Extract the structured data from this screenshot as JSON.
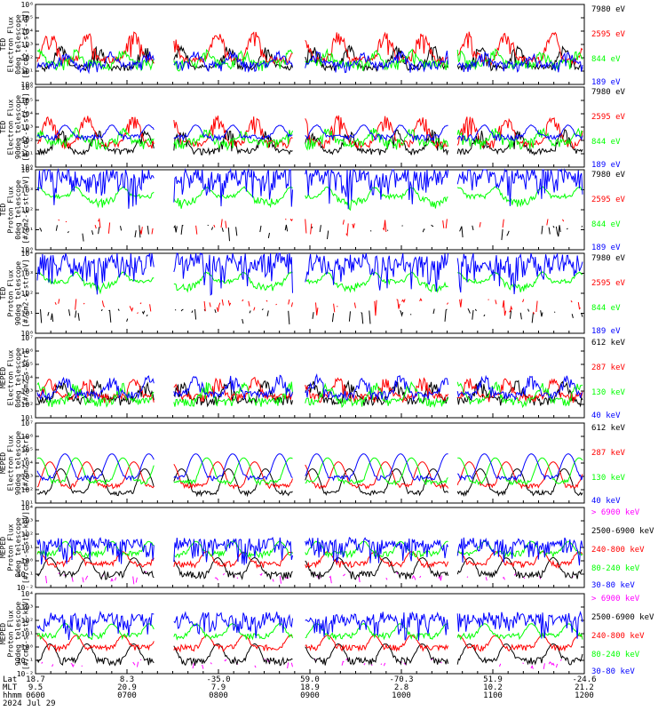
{
  "colors": {
    "black": "#000000",
    "red": "#ff0000",
    "green": "#00ff00",
    "blue": "#0000ff",
    "magenta": "#ff00ff"
  },
  "chart_data": [
    {
      "type": "line",
      "ylabel": [
        "TED",
        "Electron Flux",
        "0deg telescope",
        "[#/cm2-s-str-eV]"
      ],
      "yscale": "log",
      "ylim_exp": [
        0,
        6
      ],
      "tick_labels": [
        "10⁰",
        "10¹",
        "10²",
        "10³",
        "10⁴",
        "10⁵",
        "10⁶"
      ],
      "series": [
        {
          "name": "7980 eV",
          "color": "black",
          "base": 10,
          "pat": "lowpeaks",
          "seed": 1
        },
        {
          "name": "2595 eV",
          "color": "red",
          "base": 30,
          "pat": "peaks",
          "seed": 2
        },
        {
          "name": "844 eV",
          "color": "green",
          "base": 20,
          "pat": "flat",
          "seed": 3
        },
        {
          "name": "189 eV",
          "color": "blue",
          "base": 15,
          "pat": "flat",
          "seed": 4
        }
      ]
    },
    {
      "type": "line",
      "ylabel": [
        "TED",
        "Electron Flux",
        "90deg telescope",
        "[#/cm2-s-str-eV]"
      ],
      "yscale": "log",
      "ylim_exp": [
        0,
        6
      ],
      "tick_labels": [
        "10⁰",
        "10¹",
        "10²",
        "10³",
        "10⁴",
        "10⁵",
        "10⁶"
      ],
      "series": [
        {
          "name": "7980 eV",
          "color": "black",
          "base": 8,
          "pat": "lowpeaks",
          "seed": 5
        },
        {
          "name": "2595 eV",
          "color": "red",
          "base": 25,
          "pat": "peaks",
          "seed": 6
        },
        {
          "name": "844 eV",
          "color": "green",
          "base": 40,
          "pat": "flat",
          "seed": 7
        },
        {
          "name": "189 eV",
          "color": "blue",
          "base": 150,
          "pat": "band",
          "seed": 8
        }
      ]
    },
    {
      "type": "line",
      "ylabel": [
        "TED",
        "Proton Flux",
        "0deg telescope",
        "[#/cm2-s-str-eV]"
      ],
      "yscale": "log",
      "ylim_exp": [
        0,
        4
      ],
      "tick_labels": [
        "10⁰",
        "10¹",
        "10²",
        "10³",
        "10⁴"
      ],
      "series": [
        {
          "name": "7980 eV",
          "color": "black",
          "base": 5,
          "pat": "sparse",
          "seed": 9
        },
        {
          "name": "2595 eV",
          "color": "red",
          "base": 10,
          "pat": "sparse",
          "seed": 10
        },
        {
          "name": "844 eV",
          "color": "green",
          "base": 300,
          "pat": "arc",
          "seed": 11
        },
        {
          "name": "189 eV",
          "color": "blue",
          "base": 500,
          "pat": "spiky",
          "seed": 12
        }
      ]
    },
    {
      "type": "line",
      "ylabel": [
        "TED",
        "Proton Flux",
        "90deg telescope",
        "[#/cm2-s-str-eV]"
      ],
      "yscale": "log",
      "ylim_exp": [
        0,
        4
      ],
      "tick_labels": [
        "10⁰",
        "10¹",
        "10²",
        "10³",
        "10⁴"
      ],
      "series": [
        {
          "name": "7980 eV",
          "color": "black",
          "base": 5,
          "pat": "sparse",
          "seed": 13
        },
        {
          "name": "2595 eV",
          "color": "red",
          "base": 15,
          "pat": "sparse",
          "seed": 14
        },
        {
          "name": "844 eV",
          "color": "green",
          "base": 250,
          "pat": "arc",
          "seed": 15
        },
        {
          "name": "189 eV",
          "color": "blue",
          "base": 400,
          "pat": "spiky",
          "seed": 16
        }
      ]
    },
    {
      "type": "line",
      "ylabel": [
        "MEPED",
        "Electron Flux",
        "0deg telescope",
        "[#/cm2-s-str]"
      ],
      "yscale": "log",
      "ylim_exp": [
        1,
        7
      ],
      "tick_labels": [
        "10¹",
        "10²",
        "10³",
        "10⁴",
        "10⁵",
        "10⁶",
        "10⁷"
      ],
      "series": [
        {
          "name": "612 keV",
          "color": "black",
          "base": 150,
          "pat": "noisy",
          "seed": 17
        },
        {
          "name": "287 keV",
          "color": "red",
          "base": 250,
          "pat": "noisy",
          "seed": 18
        },
        {
          "name": "130 keV",
          "color": "green",
          "base": 120,
          "pat": "noisy",
          "seed": 19
        },
        {
          "name": "40 keV",
          "color": "blue",
          "base": 400,
          "pat": "noisy",
          "seed": 20
        }
      ]
    },
    {
      "type": "line",
      "ylabel": [
        "MEPED",
        "Electron Flux",
        "90deg telescope",
        "[#/cm2-s-str]"
      ],
      "yscale": "log",
      "ylim_exp": [
        1,
        7
      ],
      "tick_labels": [
        "10¹",
        "10²",
        "10³",
        "10⁴",
        "10⁵",
        "10⁶",
        "10⁷"
      ],
      "series": [
        {
          "name": "612 keV",
          "color": "black",
          "base": 60,
          "pat": "humps",
          "seed": 21
        },
        {
          "name": "287 keV",
          "color": "red",
          "base": 200,
          "pat": "humps",
          "seed": 22
        },
        {
          "name": "130 keV",
          "color": "green",
          "base": 400,
          "pat": "humps",
          "seed": 23
        },
        {
          "name": "40 keV",
          "color": "blue",
          "base": 800,
          "pat": "humps",
          "seed": 24
        }
      ]
    },
    {
      "type": "line",
      "ylabel": [
        "MEPED",
        "Proton Flux",
        "0deg telescope",
        "[#/cm2-s-str-keV]"
      ],
      "yscale": "log",
      "ylim_exp": [
        -2,
        4
      ],
      "tick_labels": [
        "10⁻²",
        "10⁻¹",
        "10⁰",
        "10¹",
        "10²",
        "10³",
        "10⁴"
      ],
      "series": [
        {
          "name": "> 6900 keV",
          "color": "magenta",
          "base": 0.03,
          "pat": "rare",
          "seed": 25
        },
        {
          "name": "2500-6900 keV",
          "color": "black",
          "base": 0.08,
          "pat": "lowband",
          "seed": 26
        },
        {
          "name": "240-800 keV",
          "color": "red",
          "base": 0.5,
          "pat": "band",
          "seed": 27
        },
        {
          "name": "80-240 keV",
          "color": "green",
          "base": 3,
          "pat": "band",
          "seed": 28
        },
        {
          "name": "30-80 keV",
          "color": "blue",
          "base": 2,
          "pat": "spiky",
          "seed": 29
        }
      ]
    },
    {
      "type": "line",
      "ylabel": [
        "MEPED",
        "Proton Flux",
        "90deg telescope",
        "[#/cm2-s-str-keV]"
      ],
      "yscale": "log",
      "ylim_exp": [
        -2,
        4
      ],
      "tick_labels": [
        "10⁻²",
        "10⁻¹",
        "10⁰",
        "10¹",
        "10²",
        "10³",
        "10⁴"
      ],
      "series": [
        {
          "name": "> 6900 keV",
          "color": "magenta",
          "base": 0.03,
          "pat": "rare",
          "seed": 30
        },
        {
          "name": "2500-6900 keV",
          "color": "black",
          "base": 0.08,
          "pat": "lowband",
          "seed": 31
        },
        {
          "name": "240-800 keV",
          "color": "red",
          "base": 0.8,
          "pat": "band",
          "seed": 32
        },
        {
          "name": "80-240 keV",
          "color": "green",
          "base": 6,
          "pat": "band",
          "seed": 33
        },
        {
          "name": "30-80 keV",
          "color": "blue",
          "base": 15,
          "pat": "spiky",
          "seed": 34
        }
      ]
    }
  ],
  "xaxis": {
    "row_labels": [
      "Lat",
      "MLT",
      "hhmm",
      "2024 Jul 29"
    ],
    "ticks": [
      {
        "lat": "18.7",
        "mlt": "9.5",
        "hhmm": "0600"
      },
      {
        "lat": "8.3",
        "mlt": "20.9",
        "hhmm": "0700"
      },
      {
        "lat": "-35.0",
        "mlt": "7.9",
        "hhmm": "0800"
      },
      {
        "lat": "59.0",
        "mlt": "18.9",
        "hhmm": "0900"
      },
      {
        "lat": "-70.3",
        "mlt": "2.8",
        "hhmm": "1000"
      },
      {
        "lat": "51.9",
        "mlt": "10.2",
        "hhmm": "1100"
      },
      {
        "lat": "-24.6",
        "mlt": "21.2",
        "hhmm": "1200"
      }
    ]
  }
}
